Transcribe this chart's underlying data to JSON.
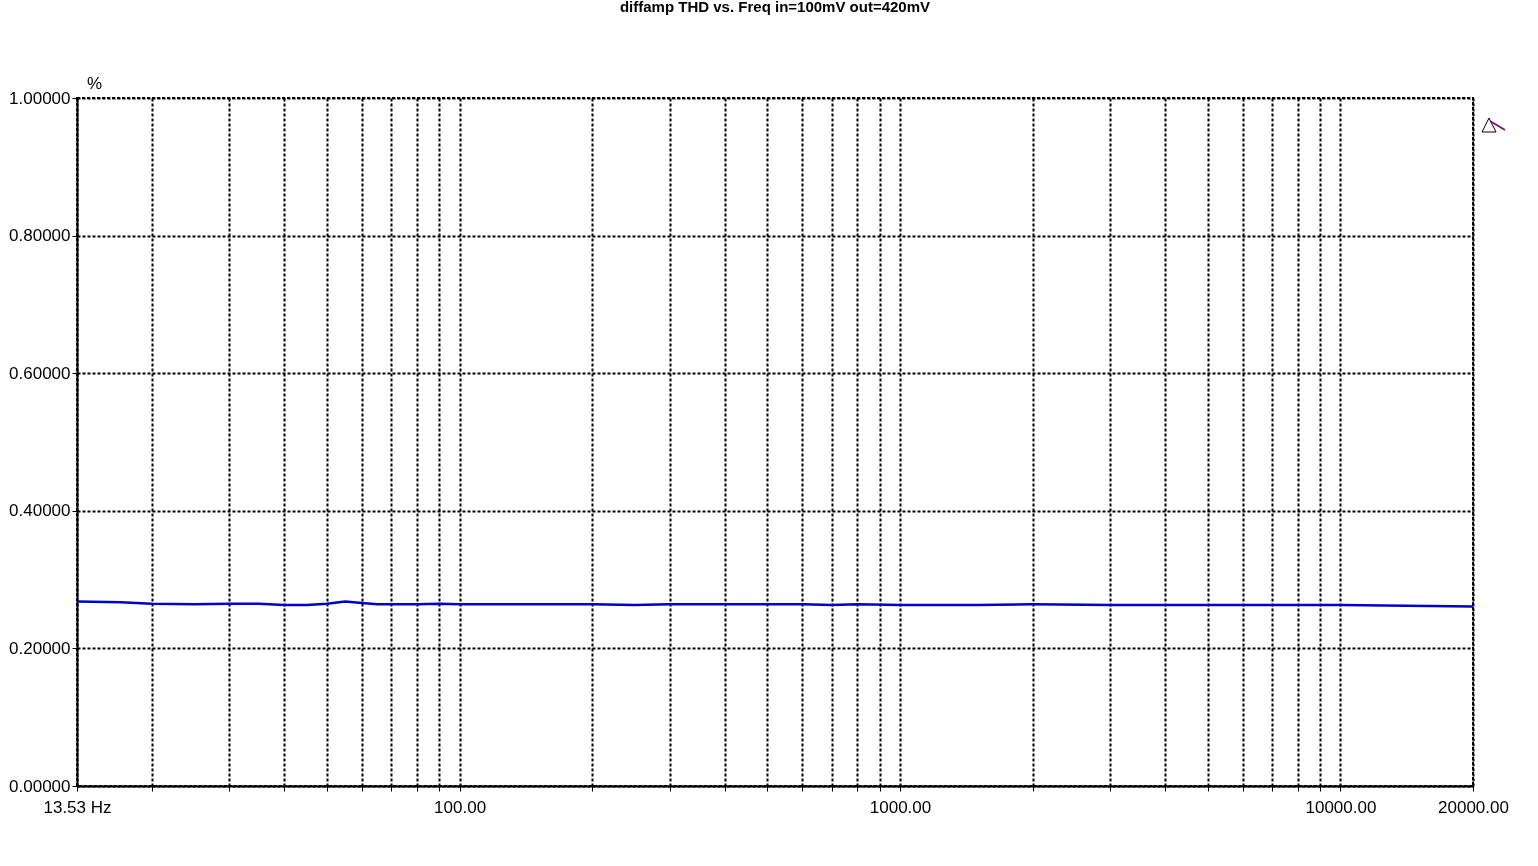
{
  "chart_data": {
    "type": "line",
    "title": "diffamp THD vs. Freq in=100mV out=420mV",
    "ylabel": "%",
    "log": "x",
    "x": [
      13.53,
      17,
      20,
      25,
      30,
      35,
      40,
      45,
      50,
      55,
      60,
      65,
      80,
      90,
      100,
      200,
      250,
      300,
      400,
      600,
      700,
      800,
      1000,
      1500,
      2000,
      3000,
      5000,
      8000,
      10000,
      20000
    ],
    "series": [
      {
        "color": "#0000cc",
        "values": [
          0.268,
          0.267,
          0.265,
          0.264,
          0.265,
          0.265,
          0.263,
          0.263,
          0.265,
          0.268,
          0.266,
          0.264,
          0.264,
          0.265,
          0.264,
          0.264,
          0.263,
          0.264,
          0.264,
          0.264,
          0.263,
          0.264,
          0.263,
          0.263,
          0.264,
          0.263,
          0.263,
          0.263,
          0.263,
          0.261
        ]
      }
    ],
    "xlim": [
      13.53,
      20000
    ],
    "xticks": [
      {
        "value": 13.53,
        "label": "13.53 Hz"
      },
      {
        "value": 20,
        "label": null
      },
      {
        "value": 30,
        "label": null
      },
      {
        "value": 40,
        "label": null
      },
      {
        "value": 50,
        "label": null
      },
      {
        "value": 60,
        "label": null
      },
      {
        "value": 70,
        "label": null
      },
      {
        "value": 80,
        "label": null
      },
      {
        "value": 90,
        "label": null
      },
      {
        "value": 100,
        "label": "100.00"
      },
      {
        "value": 200,
        "label": null
      },
      {
        "value": 300,
        "label": null
      },
      {
        "value": 400,
        "label": null
      },
      {
        "value": 500,
        "label": null
      },
      {
        "value": 600,
        "label": null
      },
      {
        "value": 700,
        "label": null
      },
      {
        "value": 800,
        "label": null
      },
      {
        "value": 900,
        "label": null
      },
      {
        "value": 1000,
        "label": "1000.00"
      },
      {
        "value": 2000,
        "label": null
      },
      {
        "value": 3000,
        "label": null
      },
      {
        "value": 4000,
        "label": null
      },
      {
        "value": 5000,
        "label": null
      },
      {
        "value": 6000,
        "label": null
      },
      {
        "value": 7000,
        "label": null
      },
      {
        "value": 8000,
        "label": null
      },
      {
        "value": 9000,
        "label": null
      },
      {
        "value": 10000,
        "label": "10000.00"
      },
      {
        "value": 20000,
        "label": "20000.00"
      }
    ],
    "ylim": [
      0,
      1
    ],
    "yticks": [
      {
        "value": 0,
        "label": "0.00000"
      },
      {
        "value": 0.2,
        "label": "0.20000"
      },
      {
        "value": 0.4,
        "label": "0.40000"
      },
      {
        "value": 0.6,
        "label": "0.60000"
      },
      {
        "value": 0.8,
        "label": "0.80000"
      },
      {
        "value": 1,
        "label": "1.00000"
      }
    ],
    "grid": true,
    "line_style": "solid"
  }
}
